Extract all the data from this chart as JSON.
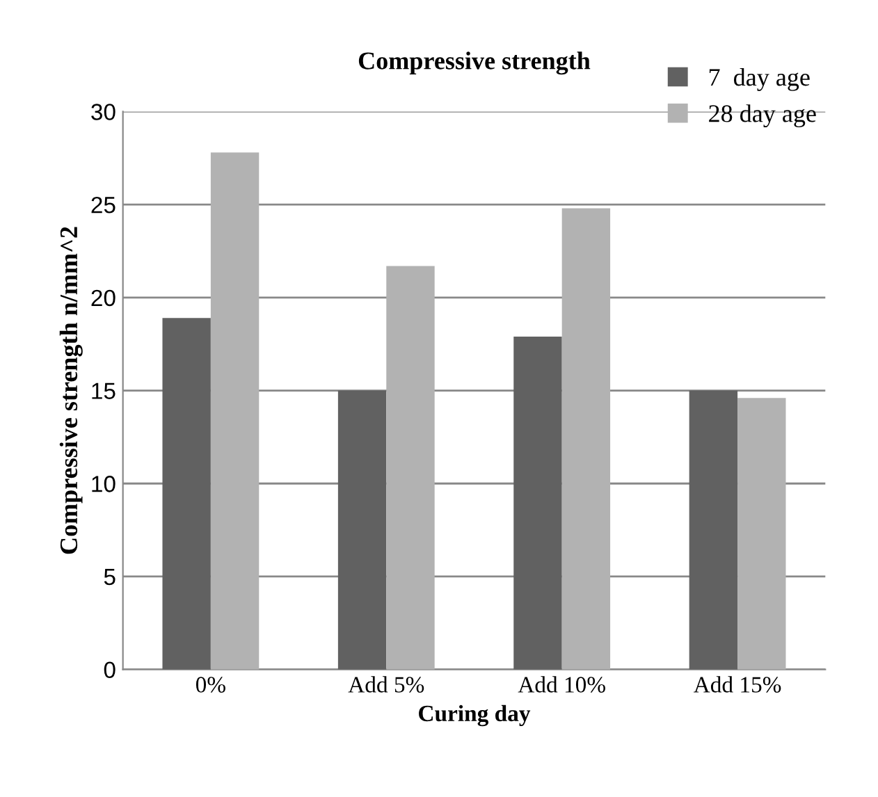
{
  "chart_data": {
    "type": "bar",
    "title": "Compressive strength",
    "xlabel": "Curing day",
    "ylabel": "Compressive strength n/mm^2",
    "categories": [
      "0%",
      "Add 5%",
      "Add 10%",
      "Add 15%"
    ],
    "series": [
      {
        "name": "7  day age",
        "color": "#616161",
        "values": [
          18.9,
          15.0,
          17.9,
          15.0
        ]
      },
      {
        "name": "28 day age",
        "color": "#b2b2b2",
        "values": [
          27.8,
          21.7,
          24.8,
          14.6
        ]
      }
    ],
    "ylim": [
      0,
      30
    ],
    "yticks": [
      0,
      5,
      10,
      15,
      20,
      25,
      30
    ],
    "grid": "y",
    "legend": "top right"
  }
}
